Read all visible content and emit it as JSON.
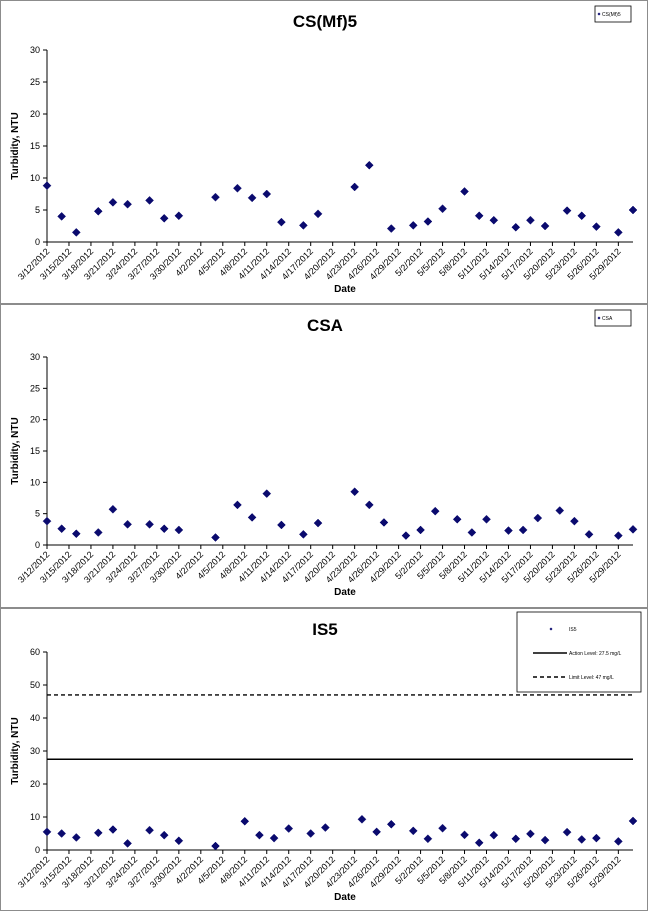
{
  "colors": {
    "marker": "#0a0a6e",
    "axis": "#000000",
    "frame": "#8c8c8c",
    "background": "#ffffff"
  },
  "chart_data": [
    {
      "type": "scatter",
      "title": "CS(Mf)5",
      "xlabel": "Date",
      "ylabel": "Turbidity, NTU",
      "ylim": [
        0,
        30
      ],
      "yticks": [
        0,
        5,
        10,
        15,
        20,
        25,
        30
      ],
      "xlim": [
        "3/12/2012",
        "5/31/2012"
      ],
      "xticks": [
        "3/12/2012",
        "3/15/2012",
        "3/18/2012",
        "3/21/2012",
        "3/24/2012",
        "3/27/2012",
        "3/30/2012",
        "4/2/2012",
        "4/5/2012",
        "4/8/2012",
        "4/11/2012",
        "4/14/2012",
        "4/17/2012",
        "4/20/2012",
        "4/23/2012",
        "4/26/2012",
        "4/29/2012",
        "5/2/2012",
        "5/5/2012",
        "5/8/2012",
        "5/11/2012",
        "5/14/2012",
        "5/17/2012",
        "5/20/2012",
        "5/23/2012",
        "5/26/2012",
        "5/29/2012"
      ],
      "legend": {
        "position": "top-right",
        "entries": [
          "CS(Mf)5"
        ]
      },
      "series": [
        {
          "name": "CS(Mf)5",
          "marker": "diamond",
          "points": [
            {
              "x": "3/12/2012",
              "y": 8.8
            },
            {
              "x": "3/14/2012",
              "y": 4.0
            },
            {
              "x": "3/16/2012",
              "y": 1.5
            },
            {
              "x": "3/19/2012",
              "y": 4.8
            },
            {
              "x": "3/21/2012",
              "y": 6.2
            },
            {
              "x": "3/23/2012",
              "y": 5.9
            },
            {
              "x": "3/26/2012",
              "y": 6.5
            },
            {
              "x": "3/28/2012",
              "y": 3.7
            },
            {
              "x": "3/30/2012",
              "y": 4.1
            },
            {
              "x": "4/4/2012",
              "y": 7.0
            },
            {
              "x": "4/7/2012",
              "y": 8.4
            },
            {
              "x": "4/9/2012",
              "y": 6.9
            },
            {
              "x": "4/11/2012",
              "y": 7.5
            },
            {
              "x": "4/13/2012",
              "y": 3.1
            },
            {
              "x": "4/16/2012",
              "y": 2.6
            },
            {
              "x": "4/18/2012",
              "y": 4.4
            },
            {
              "x": "4/23/2012",
              "y": 8.6
            },
            {
              "x": "4/25/2012",
              "y": 12.0
            },
            {
              "x": "4/28/2012",
              "y": 2.1
            },
            {
              "x": "5/1/2012",
              "y": 2.6
            },
            {
              "x": "5/3/2012",
              "y": 3.2
            },
            {
              "x": "5/5/2012",
              "y": 5.2
            },
            {
              "x": "5/8/2012",
              "y": 7.9
            },
            {
              "x": "5/10/2012",
              "y": 4.1
            },
            {
              "x": "5/12/2012",
              "y": 3.4
            },
            {
              "x": "5/15/2012",
              "y": 2.3
            },
            {
              "x": "5/17/2012",
              "y": 3.4
            },
            {
              "x": "5/19/2012",
              "y": 2.5
            },
            {
              "x": "5/22/2012",
              "y": 4.9
            },
            {
              "x": "5/24/2012",
              "y": 4.1
            },
            {
              "x": "5/26/2012",
              "y": 2.4
            },
            {
              "x": "5/29/2012",
              "y": 1.5
            },
            {
              "x": "5/31/2012",
              "y": 5.0
            }
          ]
        }
      ]
    },
    {
      "type": "scatter",
      "title": "CSA",
      "xlabel": "Date",
      "ylabel": "Turbidity, NTU",
      "ylim": [
        0,
        30
      ],
      "yticks": [
        0,
        5,
        10,
        15,
        20,
        25,
        30
      ],
      "xlim": [
        "3/12/2012",
        "5/31/2012"
      ],
      "xticks": [
        "3/12/2012",
        "3/15/2012",
        "3/18/2012",
        "3/21/2012",
        "3/24/2012",
        "3/27/2012",
        "3/30/2012",
        "4/2/2012",
        "4/5/2012",
        "4/8/2012",
        "4/11/2012",
        "4/14/2012",
        "4/17/2012",
        "4/20/2012",
        "4/23/2012",
        "4/26/2012",
        "4/29/2012",
        "5/2/2012",
        "5/5/2012",
        "5/8/2012",
        "5/11/2012",
        "5/14/2012",
        "5/17/2012",
        "5/20/2012",
        "5/23/2012",
        "5/26/2012",
        "5/29/2012"
      ],
      "legend": {
        "position": "top-right",
        "entries": [
          "CSA"
        ]
      },
      "series": [
        {
          "name": "CSA",
          "marker": "diamond",
          "points": [
            {
              "x": "3/12/2012",
              "y": 3.8
            },
            {
              "x": "3/14/2012",
              "y": 2.6
            },
            {
              "x": "3/16/2012",
              "y": 1.8
            },
            {
              "x": "3/19/2012",
              "y": 2.0
            },
            {
              "x": "3/21/2012",
              "y": 5.7
            },
            {
              "x": "3/23/2012",
              "y": 3.3
            },
            {
              "x": "3/26/2012",
              "y": 3.3
            },
            {
              "x": "3/28/2012",
              "y": 2.6
            },
            {
              "x": "3/30/2012",
              "y": 2.4
            },
            {
              "x": "4/4/2012",
              "y": 1.2
            },
            {
              "x": "4/7/2012",
              "y": 6.4
            },
            {
              "x": "4/9/2012",
              "y": 4.4
            },
            {
              "x": "4/11/2012",
              "y": 8.2
            },
            {
              "x": "4/13/2012",
              "y": 3.2
            },
            {
              "x": "4/16/2012",
              "y": 1.7
            },
            {
              "x": "4/18/2012",
              "y": 3.5
            },
            {
              "x": "4/23/2012",
              "y": 8.5
            },
            {
              "x": "4/25/2012",
              "y": 6.4
            },
            {
              "x": "4/27/2012",
              "y": 3.6
            },
            {
              "x": "4/30/2012",
              "y": 1.5
            },
            {
              "x": "5/2/2012",
              "y": 2.4
            },
            {
              "x": "5/4/2012",
              "y": 5.4
            },
            {
              "x": "5/7/2012",
              "y": 4.1
            },
            {
              "x": "5/9/2012",
              "y": 2.0
            },
            {
              "x": "5/11/2012",
              "y": 4.1
            },
            {
              "x": "5/14/2012",
              "y": 2.3
            },
            {
              "x": "5/16/2012",
              "y": 2.4
            },
            {
              "x": "5/18/2012",
              "y": 4.3
            },
            {
              "x": "5/21/2012",
              "y": 5.5
            },
            {
              "x": "5/23/2012",
              "y": 3.8
            },
            {
              "x": "5/25/2012",
              "y": 1.7
            },
            {
              "x": "5/29/2012",
              "y": 1.5
            },
            {
              "x": "5/31/2012",
              "y": 2.5
            }
          ]
        }
      ]
    },
    {
      "type": "scatter",
      "title": "IS5",
      "xlabel": "Date",
      "ylabel": "Turbidity, NTU",
      "ylim": [
        0,
        60
      ],
      "yticks": [
        0,
        10,
        20,
        30,
        40,
        50,
        60
      ],
      "xlim": [
        "3/12/2012",
        "5/31/2012"
      ],
      "xticks": [
        "3/12/2012",
        "3/15/2012",
        "3/18/2012",
        "3/21/2012",
        "3/24/2012",
        "3/27/2012",
        "3/30/2012",
        "4/2/2012",
        "4/5/2012",
        "4/8/2012",
        "4/11/2012",
        "4/14/2012",
        "4/17/2012",
        "4/20/2012",
        "4/23/2012",
        "4/26/2012",
        "4/29/2012",
        "5/2/2012",
        "5/5/2012",
        "5/8/2012",
        "5/11/2012",
        "5/14/2012",
        "5/17/2012",
        "5/20/2012",
        "5/23/2012",
        "5/26/2012",
        "5/29/2012"
      ],
      "legend": {
        "position": "top-right",
        "entries": [
          "IS5",
          "Action Level: 27.5 mg/L",
          "Limit Level: 47 mg/L"
        ]
      },
      "series": [
        {
          "name": "IS5",
          "marker": "diamond",
          "points": [
            {
              "x": "3/12/2012",
              "y": 5.5
            },
            {
              "x": "3/14/2012",
              "y": 5.0
            },
            {
              "x": "3/16/2012",
              "y": 3.8
            },
            {
              "x": "3/19/2012",
              "y": 5.2
            },
            {
              "x": "3/21/2012",
              "y": 6.2
            },
            {
              "x": "3/23/2012",
              "y": 2.0
            },
            {
              "x": "3/26/2012",
              "y": 6.0
            },
            {
              "x": "3/28/2012",
              "y": 4.5
            },
            {
              "x": "3/30/2012",
              "y": 2.8
            },
            {
              "x": "4/4/2012",
              "y": 1.2
            },
            {
              "x": "4/8/2012",
              "y": 8.7
            },
            {
              "x": "4/10/2012",
              "y": 4.5
            },
            {
              "x": "4/12/2012",
              "y": 3.6
            },
            {
              "x": "4/14/2012",
              "y": 6.5
            },
            {
              "x": "4/17/2012",
              "y": 5.0
            },
            {
              "x": "4/19/2012",
              "y": 6.8
            },
            {
              "x": "4/24/2012",
              "y": 9.3
            },
            {
              "x": "4/26/2012",
              "y": 5.5
            },
            {
              "x": "4/28/2012",
              "y": 7.8
            },
            {
              "x": "5/1/2012",
              "y": 5.8
            },
            {
              "x": "5/3/2012",
              "y": 3.4
            },
            {
              "x": "5/5/2012",
              "y": 6.6
            },
            {
              "x": "5/8/2012",
              "y": 4.6
            },
            {
              "x": "5/10/2012",
              "y": 2.2
            },
            {
              "x": "5/12/2012",
              "y": 4.5
            },
            {
              "x": "5/15/2012",
              "y": 3.4
            },
            {
              "x": "5/17/2012",
              "y": 4.9
            },
            {
              "x": "5/19/2012",
              "y": 3.0
            },
            {
              "x": "5/22/2012",
              "y": 5.4
            },
            {
              "x": "5/24/2012",
              "y": 3.2
            },
            {
              "x": "5/26/2012",
              "y": 3.6
            },
            {
              "x": "5/29/2012",
              "y": 2.6
            },
            {
              "x": "5/31/2012",
              "y": 8.8
            }
          ]
        }
      ],
      "reference_lines": [
        {
          "name": "Action Level: 27.5 mg/L",
          "y": 27.5,
          "style": "solid"
        },
        {
          "name": "Limit Level: 47 mg/L",
          "y": 47,
          "style": "dashed"
        }
      ]
    }
  ]
}
